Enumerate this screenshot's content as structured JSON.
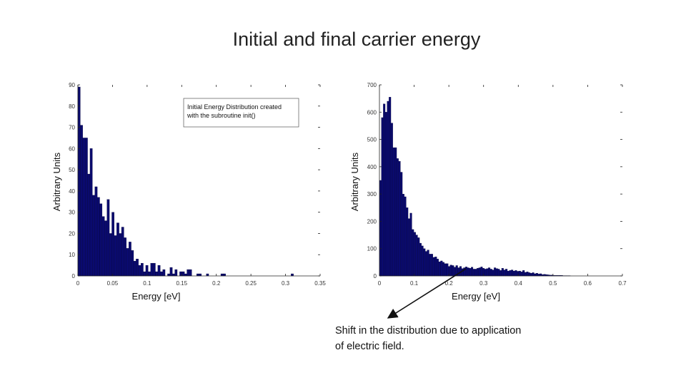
{
  "title": "Initial and final carrier energy",
  "annotation": {
    "line1": "Shift in the distribution due to application",
    "line2": "of electric field."
  },
  "colors": {
    "bar": "#0a0a6e",
    "bar_edge": "#000033",
    "axis": "#222222"
  },
  "chart_data": [
    {
      "type": "bar",
      "xlabel": "Energy  [eV]",
      "ylabel": "Arbitrary Units",
      "xlim": [
        0,
        0.35
      ],
      "ylim": [
        0,
        90
      ],
      "xticks": [
        0,
        0.05,
        0.1,
        0.15,
        0.2,
        0.25,
        0.3,
        0.35
      ],
      "xtick_labels": [
        "0",
        "0.05",
        "0.1",
        "0.15",
        "0.2",
        "0.25",
        "0.3",
        "0.35"
      ],
      "yticks": [
        0,
        10,
        20,
        30,
        40,
        50,
        60,
        70,
        80,
        90
      ],
      "legend": "Initial Energy Distribution created with the subroutine init()",
      "legend_placement": "top-right",
      "bin_width": 0.0035,
      "values": [
        89,
        71,
        65,
        65,
        48,
        60,
        38,
        42,
        37,
        34,
        28,
        26,
        36,
        20,
        30,
        19,
        25,
        20,
        23,
        18,
        13,
        16,
        12,
        7,
        8,
        5,
        6,
        2,
        5,
        2,
        6,
        6,
        2,
        5,
        2,
        3,
        0,
        1,
        4,
        1,
        3,
        0,
        2,
        2,
        1,
        3,
        3,
        0,
        0,
        1,
        1,
        0,
        0,
        1,
        0,
        0,
        0,
        0,
        0,
        1,
        1,
        0,
        0,
        0,
        0,
        0,
        0,
        0,
        0,
        0,
        0,
        0,
        0,
        0,
        0,
        0,
        0,
        0,
        0,
        0,
        0,
        0,
        0,
        0,
        0,
        0,
        0,
        0,
        1
      ]
    },
    {
      "type": "bar",
      "xlabel": "Energy  [eV]",
      "ylabel": "Arbitrary Units",
      "xlim": [
        0,
        0.7
      ],
      "ylim": [
        0,
        700
      ],
      "xticks": [
        0,
        0.1,
        0.2,
        0.3,
        0.4,
        0.5,
        0.6,
        0.7
      ],
      "xtick_labels": [
        "0",
        "0.1",
        "0.2",
        "0.3",
        "0.4",
        "0.5",
        "0.6",
        "0.7"
      ],
      "yticks": [
        0,
        100,
        200,
        300,
        400,
        500,
        600,
        700
      ],
      "ytick_labels": [
        "0",
        "100",
        "200",
        "300",
        "400",
        "500",
        "600",
        "700"
      ],
      "bin_width": 0.0055,
      "values": [
        350,
        580,
        630,
        600,
        640,
        655,
        560,
        470,
        470,
        430,
        420,
        380,
        300,
        290,
        250,
        210,
        230,
        170,
        160,
        150,
        140,
        120,
        110,
        100,
        90,
        95,
        80,
        80,
        68,
        70,
        62,
        52,
        55,
        50,
        45,
        45,
        35,
        40,
        38,
        32,
        38,
        30,
        35,
        27,
        30,
        33,
        30,
        28,
        32,
        25,
        25,
        28,
        30,
        33,
        28,
        25,
        27,
        30,
        25,
        22,
        30,
        27,
        25,
        20,
        28,
        22,
        25,
        18,
        20,
        22,
        18,
        20,
        17,
        18,
        15,
        20,
        13,
        15,
        12,
        10,
        12,
        8,
        10,
        7,
        8,
        5,
        6,
        5,
        4,
        3,
        3,
        2,
        2,
        2,
        2,
        2,
        1,
        1,
        1,
        1
      ]
    }
  ]
}
